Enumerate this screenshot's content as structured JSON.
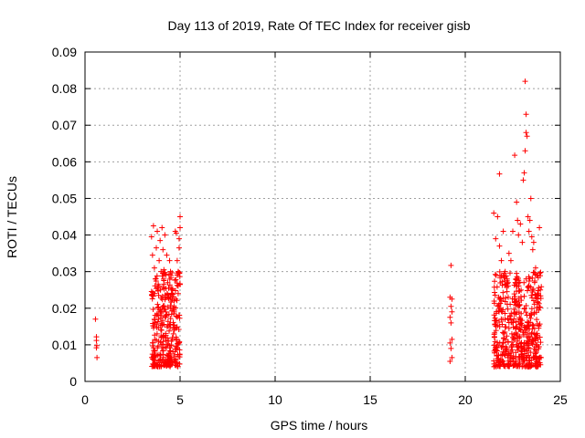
{
  "chart_data": {
    "type": "scatter",
    "title": "Day 113 of 2019, Rate Of TEC Index for receiver gisb",
    "xlabel": "GPS time / hours",
    "ylabel": "ROTI / TECUs",
    "xlim": [
      0,
      25
    ],
    "ylim": [
      0,
      0.09
    ],
    "xticks": [
      0,
      5,
      10,
      15,
      20,
      25
    ],
    "xtick_labels": [
      "0",
      "5",
      "10",
      "15",
      "20",
      "25"
    ],
    "yticks": [
      0,
      0.01,
      0.02,
      0.03,
      0.04,
      0.05,
      0.06,
      0.07,
      0.08,
      0.09
    ],
    "ytick_labels": [
      "0",
      "0.01",
      "0.02",
      "0.03",
      "0.04",
      "0.05",
      "0.06",
      "0.07",
      "0.08",
      "0.09"
    ],
    "grid": true,
    "marker": "plus",
    "marker_color": "#ff0000",
    "series": [
      {
        "name": "ROTI",
        "points": [
          [
            0.55,
            0.017
          ],
          [
            0.6,
            0.0122
          ],
          [
            0.6,
            0.0112
          ],
          [
            0.62,
            0.0098
          ],
          [
            0.6,
            0.0092
          ],
          [
            0.63,
            0.0065
          ],
          [
            3.5,
            0.0395
          ],
          [
            3.55,
            0.0345
          ],
          [
            3.6,
            0.0425
          ],
          [
            3.65,
            0.031
          ],
          [
            3.7,
            0.028
          ],
          [
            3.75,
            0.0365
          ],
          [
            3.8,
            0.041
          ],
          [
            3.85,
            0.0265
          ],
          [
            3.9,
            0.033
          ],
          [
            3.95,
            0.0385
          ],
          [
            4.0,
            0.03
          ],
          [
            4.05,
            0.042
          ],
          [
            4.1,
            0.036
          ],
          [
            4.15,
            0.0305
          ],
          [
            4.2,
            0.04
          ],
          [
            4.25,
            0.029
          ],
          [
            4.3,
            0.0345
          ],
          [
            4.35,
            0.027
          ],
          [
            4.4,
            0.0255
          ],
          [
            4.45,
            0.033
          ],
          [
            4.5,
            0.023
          ],
          [
            4.55,
            0.024
          ],
          [
            4.55,
            0.011
          ],
          [
            4.6,
            0.012
          ],
          [
            4.65,
            0.013
          ],
          [
            4.7,
            0.014
          ],
          [
            4.75,
            0.041
          ],
          [
            4.8,
            0.0405
          ],
          [
            4.85,
            0.033
          ],
          [
            4.9,
            0.03
          ],
          [
            4.95,
            0.039
          ],
          [
            5.0,
            0.045
          ],
          [
            5.0,
            0.042
          ],
          [
            4.95,
            0.0365
          ],
          [
            4.9,
            0.024
          ],
          [
            5.0,
            0.0265
          ],
          [
            19.25,
            0.0317
          ],
          [
            19.2,
            0.023
          ],
          [
            19.3,
            0.0225
          ],
          [
            19.25,
            0.0205
          ],
          [
            19.3,
            0.019
          ],
          [
            19.2,
            0.0175
          ],
          [
            19.25,
            0.016
          ],
          [
            19.3,
            0.0115
          ],
          [
            19.2,
            0.0105
          ],
          [
            19.25,
            0.009
          ],
          [
            19.3,
            0.0065
          ],
          [
            19.2,
            0.0055
          ],
          [
            21.5,
            0.046
          ],
          [
            21.6,
            0.039
          ],
          [
            21.7,
            0.045
          ],
          [
            21.8,
            0.037
          ],
          [
            21.9,
            0.033
          ],
          [
            21.8,
            0.0567
          ],
          [
            22.0,
            0.041
          ],
          [
            22.1,
            0.03
          ],
          [
            22.2,
            0.028
          ],
          [
            22.3,
            0.035
          ],
          [
            22.4,
            0.033
          ],
          [
            22.5,
            0.041
          ],
          [
            22.6,
            0.0618
          ],
          [
            22.7,
            0.049
          ],
          [
            22.75,
            0.044
          ],
          [
            22.8,
            0.04
          ],
          [
            22.9,
            0.043
          ],
          [
            23.0,
            0.038
          ],
          [
            23.05,
            0.055
          ],
          [
            23.1,
            0.057
          ],
          [
            23.15,
            0.063
          ],
          [
            23.2,
            0.068
          ],
          [
            23.15,
            0.082
          ],
          [
            23.2,
            0.073
          ],
          [
            23.25,
            0.067
          ],
          [
            23.3,
            0.045
          ],
          [
            23.35,
            0.041
          ],
          [
            23.4,
            0.044
          ],
          [
            23.5,
            0.0395
          ],
          [
            23.6,
            0.038
          ],
          [
            23.45,
            0.05
          ],
          [
            23.55,
            0.036
          ],
          [
            23.7,
            0.031
          ],
          [
            23.8,
            0.029
          ],
          [
            23.9,
            0.042
          ],
          [
            23.95,
            0.025
          ],
          [
            23.85,
            0.024
          ]
        ],
        "dense_clusters": [
          {
            "x_range": [
              3.5,
              5.0
            ],
            "y_range": [
              0.004,
              0.03
            ],
            "count": 320
          },
          {
            "x_range": [
              21.5,
              24.0
            ],
            "y_range": [
              0.004,
              0.03
            ],
            "count": 520
          }
        ]
      }
    ]
  }
}
